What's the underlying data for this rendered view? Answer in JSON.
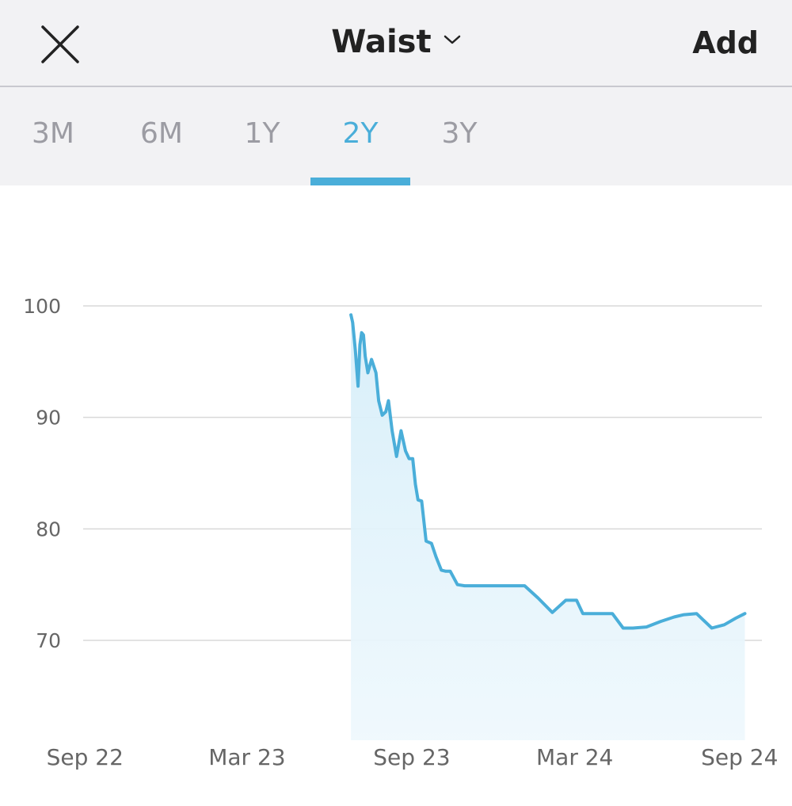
{
  "header": {
    "title": "Waist",
    "add_label": "Add",
    "close_icon": "close-icon",
    "dropdown_icon": "chevron-down-icon"
  },
  "tabs": [
    {
      "label": "3M",
      "active": false
    },
    {
      "label": "6M",
      "active": false
    },
    {
      "label": "1Y",
      "active": false
    },
    {
      "label": "2Y",
      "active": true
    },
    {
      "label": "3Y",
      "active": false
    }
  ],
  "colors": {
    "accent": "#4aaed9",
    "fill": "#e3f3fb",
    "grid": "#d9d9d9",
    "axis_text": "#666666"
  },
  "chart_data": {
    "type": "area",
    "title": "",
    "xlabel": "",
    "ylabel": "",
    "x_ticks": [
      "Sep 22",
      "Mar 23",
      "Sep 23",
      "Mar 24",
      "Sep 24"
    ],
    "x_tick_dates": [
      "2022-09-01",
      "2023-03-01",
      "2023-09-01",
      "2024-03-01",
      "2024-09-01"
    ],
    "y_ticks": [
      70,
      80,
      90,
      100
    ],
    "ylim": [
      61.5,
      100
    ],
    "xlim": [
      "2022-08-30",
      "2024-09-26"
    ],
    "grid": true,
    "series": [
      {
        "x": [
          "2023-06-25",
          "2023-06-27",
          "2023-06-30",
          "2023-07-03",
          "2023-07-05",
          "2023-07-07",
          "2023-07-09",
          "2023-07-11",
          "2023-07-14",
          "2023-07-18",
          "2023-07-23",
          "2023-07-26",
          "2023-07-30",
          "2023-08-03",
          "2023-08-06",
          "2023-08-10",
          "2023-08-15",
          "2023-08-20",
          "2023-08-25",
          "2023-08-29",
          "2023-09-02",
          "2023-09-05",
          "2023-09-08",
          "2023-09-12",
          "2023-09-17",
          "2023-09-23",
          "2023-09-28",
          "2023-10-04",
          "2023-10-09",
          "2023-10-14",
          "2023-10-22",
          "2023-10-30",
          "2023-11-08",
          "2023-11-14",
          "2023-11-20",
          "2023-11-26",
          "2023-12-05",
          "2023-12-15",
          "2023-12-25",
          "2024-01-05",
          "2024-01-20",
          "2024-02-05",
          "2024-02-20",
          "2024-03-03",
          "2024-03-10",
          "2024-03-20",
          "2024-04-03",
          "2024-04-12",
          "2024-04-24",
          "2024-05-05",
          "2024-05-20",
          "2024-06-05",
          "2024-06-20",
          "2024-07-01",
          "2024-07-15",
          "2024-08-01",
          "2024-08-15",
          "2024-08-28",
          "2024-09-07"
        ],
        "values": [
          99.2,
          98.5,
          96.0,
          92.8,
          96.5,
          97.6,
          97.4,
          95.5,
          94.0,
          95.2,
          94.0,
          91.5,
          90.2,
          90.5,
          91.5,
          88.8,
          86.5,
          88.8,
          87.0,
          86.3,
          86.3,
          84.0,
          82.6,
          82.5,
          78.9,
          78.7,
          77.5,
          76.3,
          76.2,
          76.2,
          75.0,
          74.9,
          74.9,
          74.9,
          74.9,
          74.9,
          74.9,
          74.9,
          74.9,
          74.9,
          73.8,
          72.5,
          73.6,
          73.6,
          72.4,
          72.4,
          72.4,
          72.4,
          71.1,
          71.1,
          71.2,
          71.7,
          72.1,
          72.3,
          72.4,
          71.1,
          71.4,
          72.0,
          72.4
        ]
      }
    ]
  }
}
